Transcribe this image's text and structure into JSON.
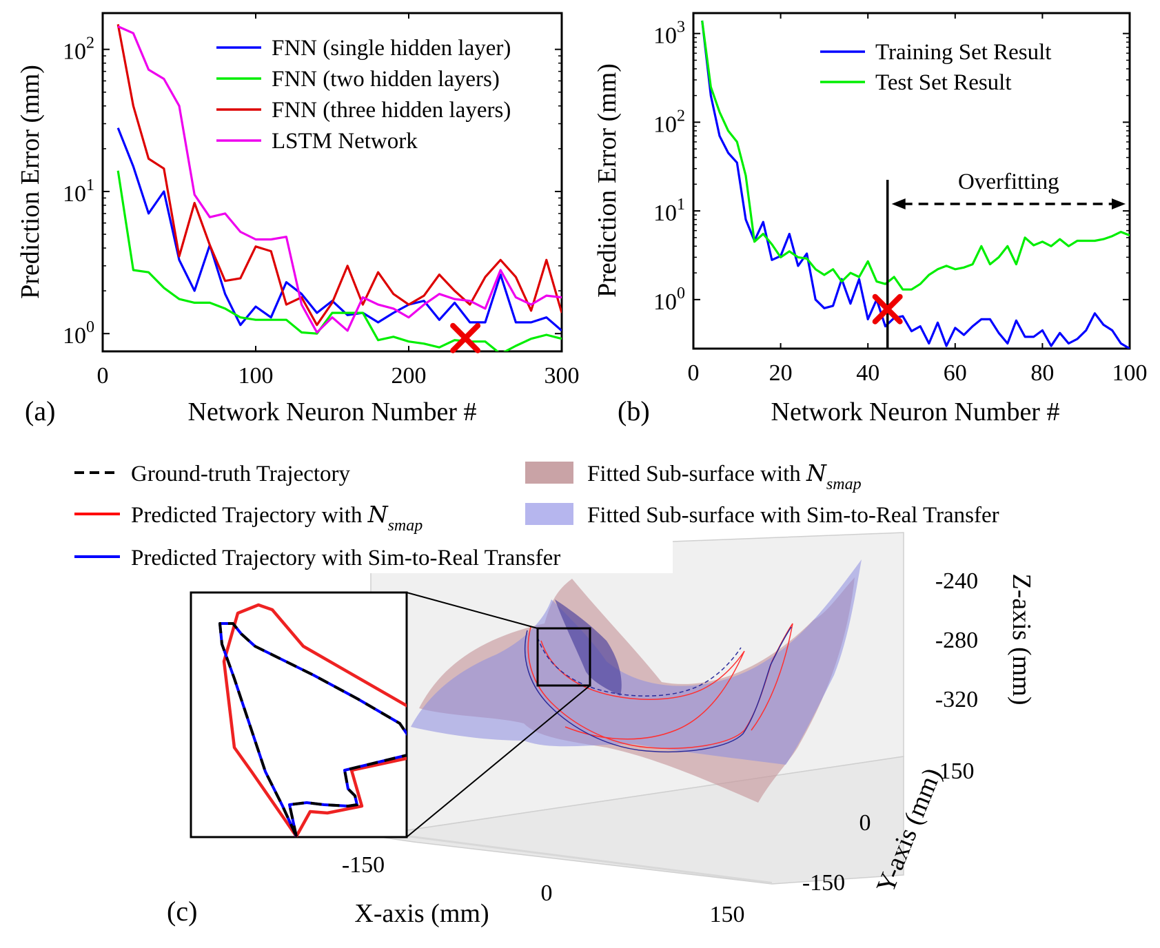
{
  "chart_data": [
    {
      "panel_label": "(a)",
      "type": "line",
      "yscale": "log",
      "xlabel": "Network Neuron Number #",
      "ylabel": "Prediction Error (mm)",
      "xlim": [
        0,
        300
      ],
      "ylim": [
        0.75,
        180
      ],
      "xticks": [
        "0",
        "100",
        "200",
        "300"
      ],
      "yticks": [
        {
          "base": "10",
          "exp": "0",
          "value": 1
        },
        {
          "base": "10",
          "exp": "1",
          "value": 10
        },
        {
          "base": "10",
          "exp": "2",
          "value": 100
        }
      ],
      "series": [
        {
          "name": "FNN (single hidden layer)",
          "color": "#0000ff",
          "x": [
            10,
            20,
            30,
            40,
            50,
            60,
            70,
            80,
            90,
            100,
            110,
            120,
            130,
            140,
            150,
            160,
            170,
            180,
            190,
            200,
            210,
            220,
            230,
            240,
            250,
            260,
            270,
            280,
            290,
            300
          ],
          "y": [
            28,
            15,
            7,
            10,
            3.3,
            2,
            4.2,
            1.9,
            1.15,
            1.55,
            1.3,
            2.3,
            1.9,
            1.4,
            1.7,
            1.35,
            1.4,
            1.2,
            1.4,
            1.6,
            1.7,
            1.25,
            1.65,
            1.2,
            1.2,
            2.6,
            1.2,
            1.2,
            1.3,
            1.05
          ]
        },
        {
          "name": "FNN (two hidden layers)",
          "color": "#00ee00",
          "x": [
            10,
            20,
            30,
            40,
            50,
            60,
            70,
            80,
            90,
            100,
            110,
            120,
            130,
            140,
            150,
            160,
            170,
            180,
            190,
            200,
            210,
            220,
            230,
            240,
            250,
            260,
            270,
            280,
            290,
            300
          ],
          "y": [
            14,
            2.8,
            2.7,
            2.1,
            1.75,
            1.65,
            1.65,
            1.5,
            1.3,
            1.25,
            1.25,
            1.25,
            1.02,
            1.0,
            1.4,
            1.4,
            1.4,
            0.9,
            0.95,
            0.88,
            0.85,
            0.8,
            0.9,
            0.88,
            0.88,
            0.72,
            0.82,
            0.92,
            0.98,
            0.92
          ]
        },
        {
          "name": "FNN (three hidden layers)",
          "color": "#dd0000",
          "x": [
            10,
            20,
            30,
            40,
            50,
            60,
            70,
            80,
            90,
            100,
            110,
            120,
            130,
            140,
            150,
            160,
            170,
            180,
            190,
            200,
            210,
            220,
            230,
            240,
            250,
            260,
            270,
            280,
            290,
            300
          ],
          "y": [
            150,
            40,
            17,
            14.5,
            3.5,
            8.3,
            4.2,
            2.35,
            2.45,
            4.1,
            3.8,
            1.6,
            1.8,
            1.15,
            1.65,
            3.0,
            1.6,
            2.7,
            1.9,
            1.6,
            1.85,
            2.6,
            2.0,
            1.6,
            2.5,
            3.3,
            2.5,
            1.45,
            3.3,
            1.4
          ]
        },
        {
          "name": "LSTM Network",
          "color": "#ee00ee",
          "x": [
            10,
            20,
            30,
            40,
            50,
            60,
            70,
            80,
            90,
            100,
            110,
            120,
            130,
            140,
            150,
            160,
            170,
            180,
            190,
            200,
            210,
            220,
            230,
            240,
            250,
            260,
            270,
            280,
            290,
            300
          ],
          "y": [
            145,
            130,
            72,
            62,
            40,
            9.5,
            6.6,
            7.0,
            5.2,
            4.6,
            4.6,
            4.8,
            1.6,
            1.02,
            1.3,
            1.05,
            1.8,
            1.6,
            1.5,
            1.3,
            1.6,
            1.9,
            1.75,
            1.7,
            1.5,
            2.8,
            1.8,
            1.6,
            1.85,
            1.8
          ]
        }
      ],
      "marker": {
        "x": 237,
        "y": 0.93,
        "color": "#ee0000"
      }
    },
    {
      "panel_label": "(b)",
      "type": "line",
      "yscale": "log",
      "xlabel": "Network Neuron Number #",
      "ylabel": "Prediction Error (mm)",
      "xlim": [
        0,
        100
      ],
      "ylim": [
        0.28,
        1700
      ],
      "xticks": [
        "0",
        "20",
        "40",
        "60",
        "80",
        "100"
      ],
      "yticks": [
        {
          "base": "10",
          "exp": "0",
          "value": 1
        },
        {
          "base": "10",
          "exp": "1",
          "value": 10
        },
        {
          "base": "10",
          "exp": "2",
          "value": 100
        },
        {
          "base": "10",
          "exp": "3",
          "value": 1000
        }
      ],
      "series": [
        {
          "name": "Training Set Result",
          "color": "#0000ff",
          "x": [
            2,
            4,
            6,
            8,
            10,
            12,
            14,
            16,
            18,
            20,
            22,
            24,
            26,
            28,
            30,
            32,
            34,
            36,
            38,
            40,
            42,
            44,
            46,
            48,
            50,
            52,
            54,
            56,
            58,
            60,
            62,
            64,
            66,
            68,
            70,
            72,
            74,
            76,
            78,
            80,
            82,
            84,
            86,
            88,
            90,
            92,
            94,
            96,
            98,
            100
          ],
          "y": [
            1400,
            200,
            70,
            45,
            35,
            8,
            4.6,
            7.5,
            2.8,
            3.1,
            5.5,
            2.4,
            3.3,
            1.0,
            0.8,
            0.85,
            1.7,
            0.9,
            1.7,
            0.6,
            1.0,
            0.5,
            0.62,
            0.65,
            0.44,
            0.5,
            0.32,
            0.55,
            0.3,
            0.48,
            0.4,
            0.5,
            0.6,
            0.6,
            0.42,
            0.32,
            0.58,
            0.38,
            0.38,
            0.45,
            0.3,
            0.42,
            0.32,
            0.36,
            0.45,
            0.7,
            0.52,
            0.45,
            0.32,
            0.28
          ]
        },
        {
          "name": "Test Set Result",
          "color": "#00ee00",
          "x": [
            2,
            4,
            6,
            8,
            10,
            12,
            14,
            16,
            18,
            20,
            22,
            24,
            26,
            28,
            30,
            32,
            34,
            36,
            38,
            40,
            42,
            44,
            46,
            48,
            50,
            52,
            54,
            56,
            58,
            60,
            62,
            64,
            66,
            68,
            70,
            72,
            74,
            76,
            78,
            80,
            82,
            84,
            86,
            88,
            90,
            92,
            94,
            96,
            98,
            100
          ],
          "y": [
            1400,
            250,
            130,
            80,
            60,
            25,
            4.5,
            5.5,
            4.2,
            3.0,
            3.5,
            3.0,
            2.9,
            2.2,
            1.9,
            2.2,
            1.6,
            2.0,
            1.8,
            2.7,
            1.6,
            1.5,
            1.8,
            1.3,
            1.3,
            1.5,
            1.9,
            2.2,
            2.4,
            2.2,
            2.3,
            2.5,
            4.0,
            2.5,
            3.0,
            4.0,
            2.5,
            5.0,
            4.1,
            4.5,
            4.0,
            4.8,
            4.0,
            4.6,
            4.6,
            4.6,
            4.8,
            5.2,
            5.8,
            5.3
          ]
        }
      ],
      "marker": {
        "x": 44.5,
        "y": 0.78,
        "color": "#ee0000"
      },
      "vline_x": 44.5,
      "annotation": {
        "text": "Overfitting",
        "from_x": 44.5,
        "to_x": 100
      }
    },
    {
      "panel_label": "(c)",
      "type": "3d-surface",
      "legend": [
        {
          "name": "Ground-truth Trajectory",
          "color": "#000000",
          "style": "dashed-line"
        },
        {
          "name": "Predicted Trajectory with ",
          "math": "N",
          "sub": "smap",
          "color": "#ff0000",
          "style": "line"
        },
        {
          "name": "Predicted Trajectory with Sim-to-Real Transfer",
          "color": "#0000ff",
          "style": "line"
        },
        {
          "name": "Fitted Sub-surface with ",
          "math": "N",
          "sub": "smap",
          "color": "#c9a3a6",
          "style": "patch"
        },
        {
          "name": "Fitted Sub-surface with Sim-to-Real Transfer",
          "color": "#b6b6ee",
          "style": "patch"
        }
      ],
      "xlabel": "X-axis (mm)",
      "ylabel": "Y-axis (mm)",
      "zlabel": "Z-axis (mm)",
      "xticks": [
        "-150",
        "0",
        "150"
      ],
      "yticks": [
        "150",
        "0",
        "-150"
      ],
      "zticks": [
        "-240",
        "-280",
        "-320"
      ]
    }
  ]
}
